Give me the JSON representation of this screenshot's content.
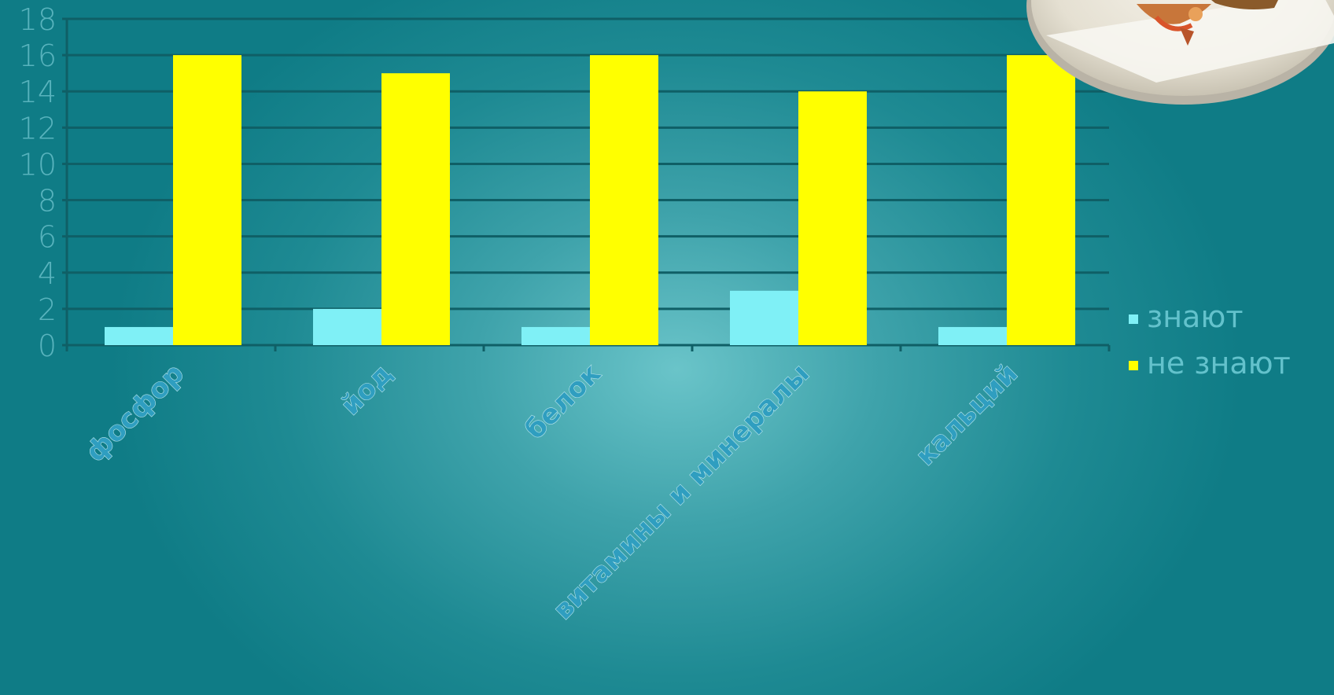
{
  "chart_data": {
    "type": "bar",
    "title": "",
    "xlabel": "",
    "ylabel": "",
    "categories": [
      "фосфор",
      "йод",
      "белок",
      "витамины и минералы",
      "кальций"
    ],
    "series": [
      {
        "name": "знают",
        "values": [
          1,
          2,
          1,
          3,
          1
        ],
        "color": "#7ff0f6"
      },
      {
        "name": "не знают",
        "values": [
          16,
          15,
          16,
          14,
          16
        ],
        "color": "#ffff00"
      }
    ],
    "ylim": [
      0,
      18
    ],
    "yticks": [
      0,
      2,
      4,
      6,
      8,
      10,
      12,
      14,
      16,
      18
    ],
    "grid": true,
    "legend_position": "right",
    "colors": {
      "tick_text": "#58b3bd",
      "category_text": "#2f9ec0",
      "category_outline": "#b7e5ec",
      "gridline": "#0f5f66",
      "legend_text": "#63c2cc"
    }
  },
  "decorations": {
    "photo": "plate-with-shrimp-image"
  }
}
